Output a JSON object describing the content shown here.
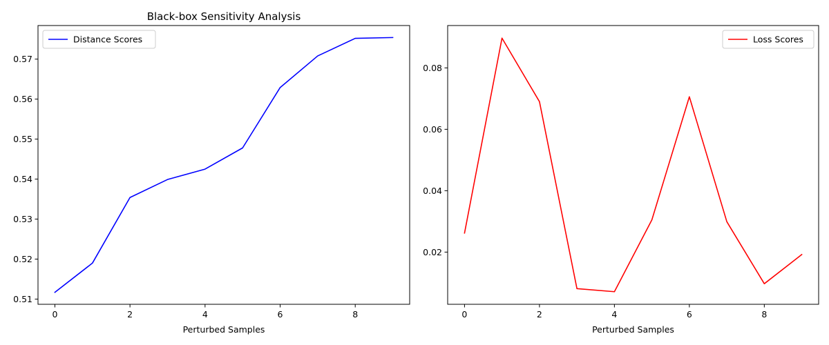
{
  "chart_data": [
    {
      "type": "line",
      "title": "Black-box Sensitivity Analysis",
      "xlabel": "Perturbed Samples",
      "ylabel": "",
      "x": [
        0,
        1,
        2,
        3,
        4,
        5,
        6,
        7,
        8,
        9
      ],
      "series": [
        {
          "name": "Distance Scores",
          "color": "#0000ff",
          "values": [
            0.5117,
            0.519,
            0.5354,
            0.5399,
            0.5425,
            0.5478,
            0.5629,
            0.5708,
            0.5752,
            0.5754
          ]
        }
      ],
      "xlim": [
        -0.45,
        9.45
      ],
      "ylim": [
        0.5087,
        0.5784
      ],
      "xticks": [
        0,
        2,
        4,
        6,
        8
      ],
      "xtick_labels": [
        "0",
        "2",
        "4",
        "6",
        "8"
      ],
      "yticks": [
        0.51,
        0.52,
        0.53,
        0.54,
        0.55,
        0.56,
        0.57
      ],
      "ytick_labels": [
        "0.51",
        "0.52",
        "0.53",
        "0.54",
        "0.55",
        "0.56",
        "0.57"
      ],
      "grid": false,
      "legend_position": "top-left"
    },
    {
      "type": "line",
      "title": "",
      "xlabel": "Perturbed Samples",
      "ylabel": "",
      "x": [
        0,
        1,
        2,
        3,
        4,
        5,
        6,
        7,
        8,
        9
      ],
      "series": [
        {
          "name": "Loss Scores",
          "color": "#ff0000",
          "values": [
            0.0262,
            0.0897,
            0.069,
            0.0081,
            0.0071,
            0.0305,
            0.0706,
            0.0299,
            0.0097,
            0.0192
          ]
        }
      ],
      "xlim": [
        -0.45,
        9.45
      ],
      "ylim": [
        0.003,
        0.0938
      ],
      "xticks": [
        0,
        2,
        4,
        6,
        8
      ],
      "xtick_labels": [
        "0",
        "2",
        "4",
        "6",
        "8"
      ],
      "yticks": [
        0.02,
        0.04,
        0.06,
        0.08
      ],
      "ytick_labels": [
        "0.02",
        "0.04",
        "0.06",
        "0.08"
      ],
      "grid": false,
      "legend_position": "top-right"
    }
  ]
}
